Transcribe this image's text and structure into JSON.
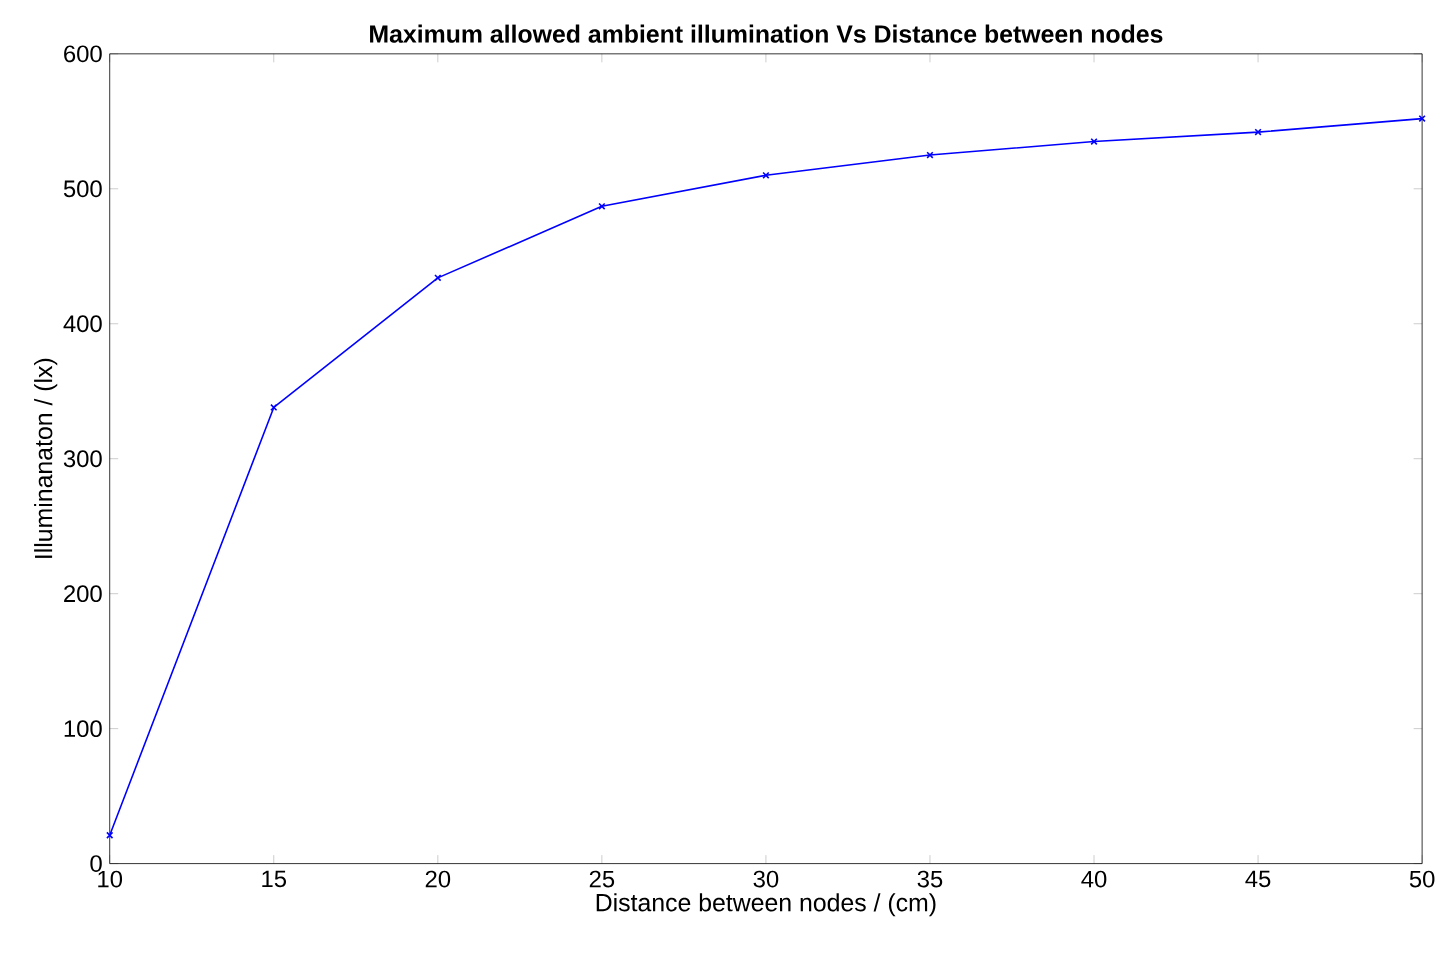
{
  "chart_data": {
    "type": "line",
    "title": "Maximum allowed ambient  illumination Vs Distance between nodes",
    "xlabel": "Distance between nodes / (cm)",
    "ylabel": "Illuminanaton / (lx)",
    "x": [
      10,
      15,
      20,
      25,
      30,
      35,
      40,
      45,
      50
    ],
    "series": [
      {
        "color": "#0000ff",
        "values": [
          21,
          338,
          434,
          487,
          510,
          525,
          535,
          542,
          552
        ]
      }
    ],
    "xlim": [
      10,
      50
    ],
    "ylim": [
      0,
      600
    ],
    "xticks": [
      10,
      15,
      20,
      25,
      30,
      35,
      40,
      45,
      50
    ],
    "yticks": [
      0,
      100,
      200,
      300,
      400,
      500,
      600
    ],
    "marker": "cross",
    "line_style": "solid",
    "grid": false
  }
}
